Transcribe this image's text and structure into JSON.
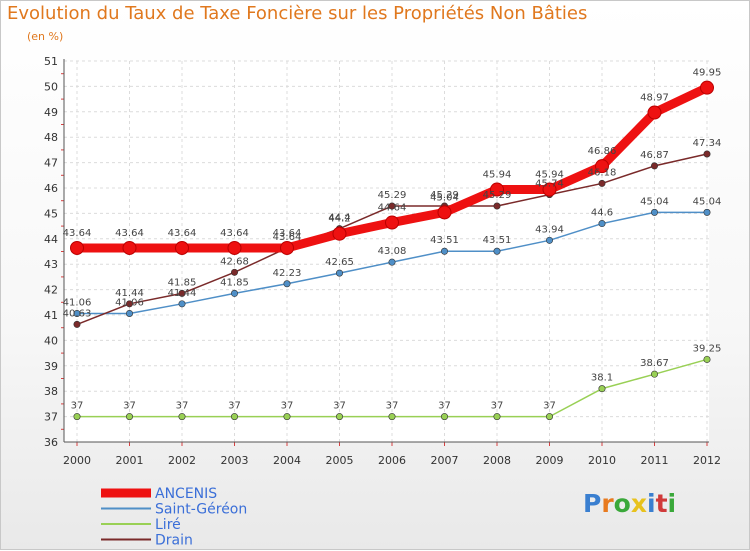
{
  "chart_data": {
    "type": "line",
    "title": "Evolution du Taux de Taxe Foncière sur les Propriétés Non Bâties",
    "unit_label": "(en %)",
    "x": [
      "2000",
      "2001",
      "2002",
      "2003",
      "2004",
      "2005",
      "2006",
      "2007",
      "2008",
      "2009",
      "2010",
      "2011",
      "2012"
    ],
    "ylim": [
      36,
      51
    ],
    "yticks": [
      "36",
      "37",
      "38",
      "39",
      "40",
      "41",
      "42",
      "43",
      "44",
      "45",
      "46",
      "47",
      "48",
      "49",
      "50",
      "51"
    ],
    "grid": true,
    "legend_position": "bottom-left",
    "series": [
      {
        "name": "ANCENIS",
        "color": "#ee1111",
        "values": [
          43.64,
          43.64,
          43.64,
          43.64,
          43.64,
          44.2,
          44.64,
          45.04,
          45.94,
          45.94,
          46.86,
          48.97,
          49.95
        ],
        "labels": [
          "43.64",
          "43.64",
          "43.64",
          "43.64",
          "43.64",
          "44.2",
          "44.64",
          "45.04",
          "45.94",
          "45.94",
          "46.86",
          "48.97",
          "49.95"
        ]
      },
      {
        "name": "Saint-Géréon",
        "color": "#4f8fc7",
        "values": [
          41.06,
          41.06,
          41.44,
          41.85,
          42.23,
          42.65,
          43.08,
          43.51,
          43.51,
          43.94,
          44.6,
          45.04,
          45.04
        ],
        "labels": [
          "41.06",
          "41.06",
          "41.44",
          "41.85",
          "42.23",
          "42.65",
          "43.08",
          "43.51",
          "43.51",
          "43.94",
          "44.6",
          "45.04",
          "45.04"
        ]
      },
      {
        "name": "Liré",
        "color": "#99d055",
        "values": [
          37,
          37,
          37,
          37,
          37,
          37,
          37,
          37,
          37,
          37,
          38.1,
          38.67,
          39.25
        ],
        "labels": [
          "37",
          "37",
          "37",
          "37",
          "37",
          "37",
          "37",
          "37",
          "37",
          "37",
          "38.1",
          "38.67",
          "39.25"
        ]
      },
      {
        "name": "Drain",
        "color": "#7a2a2a",
        "values": [
          40.63,
          41.44,
          41.85,
          42.68,
          43.64,
          44.4,
          45.29,
          45.29,
          45.29,
          45.74,
          46.18,
          46.87,
          47.34
        ],
        "labels": [
          "40.63",
          "41.44",
          "41.85",
          "42.68",
          "43.64",
          "44.4",
          "45.29",
          "45.29",
          "45.29",
          "45.74",
          "46.18",
          "46.87",
          "47.34"
        ]
      }
    ]
  },
  "logo": {
    "text": "Proxiti",
    "colors": [
      "#3a7fd0",
      "#e87a1e",
      "#3aa83a",
      "#e8c21e",
      "#3a7fd0",
      "#d03a3a",
      "#3aa83a"
    ]
  }
}
